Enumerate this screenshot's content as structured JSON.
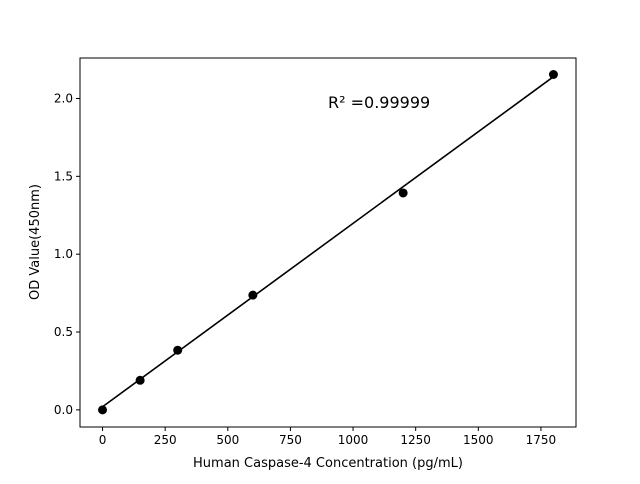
{
  "chart_data": {
    "type": "scatter",
    "title": "",
    "xlabel": "Human Caspase-4 Concentration (pg/mL)",
    "ylabel": "OD Value(450nm)",
    "xlim": [
      -90,
      1890
    ],
    "ylim": [
      -0.11,
      2.26
    ],
    "xticks": [
      0,
      250,
      500,
      750,
      1000,
      1250,
      1500,
      1750
    ],
    "yticks": [
      "0.0",
      "0.5",
      "1.0",
      "1.5",
      "2.0"
    ],
    "grid": false,
    "series": [
      {
        "x": [
          0,
          150,
          300,
          600,
          1200,
          1800
        ],
        "y": [
          0.0,
          0.19,
          0.383,
          0.737,
          1.393,
          2.154
        ],
        "color": "#000000"
      }
    ],
    "fit_line": {
      "x": [
        0,
        1800
      ],
      "y": [
        0.02,
        2.14
      ],
      "color": "#000000"
    },
    "annotation": "R² =0.99999"
  }
}
